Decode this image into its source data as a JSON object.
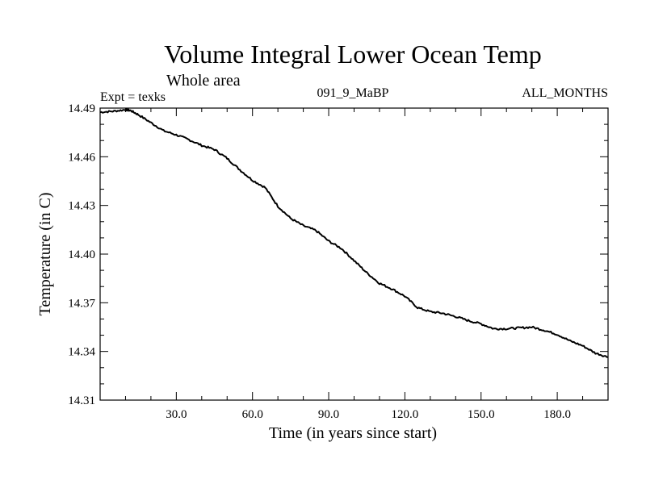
{
  "chart_data": {
    "type": "line",
    "title": "Volume Integral Lower Ocean Temp",
    "subtitle": "Whole area",
    "expt_label": "Expt = texks",
    "center_label": "091_9_MaBP",
    "right_label": "ALL_MONTHS",
    "xlabel": "Time (in years since start)",
    "ylabel": "Temperature (in C)",
    "xlim": [
      0,
      200
    ],
    "ylim": [
      14.31,
      14.49
    ],
    "x_ticks": [
      {
        "value": 30,
        "label": "30.0"
      },
      {
        "value": 60,
        "label": "60.0"
      },
      {
        "value": 90,
        "label": "90.0"
      },
      {
        "value": 120,
        "label": "120.0"
      },
      {
        "value": 150,
        "label": "150.0"
      },
      {
        "value": 180,
        "label": "180.0"
      }
    ],
    "y_ticks": [
      {
        "value": 14.31,
        "label": "14.31"
      },
      {
        "value": 14.34,
        "label": "14.34"
      },
      {
        "value": 14.37,
        "label": "14.37"
      },
      {
        "value": 14.4,
        "label": "14.40"
      },
      {
        "value": 14.43,
        "label": "14.43"
      },
      {
        "value": 14.46,
        "label": "14.46"
      },
      {
        "value": 14.49,
        "label": "14.49"
      }
    ],
    "x_minor_step": 10,
    "y_minor_step": 0.01,
    "series": [
      {
        "name": "Volume Integral Lower Ocean Temp",
        "color": "#000000",
        "x": [
          0,
          5,
          10,
          12,
          15,
          20,
          25,
          30,
          35,
          40,
          45,
          50,
          55,
          60,
          65,
          70,
          75,
          80,
          85,
          90,
          95,
          100,
          105,
          110,
          115,
          120,
          125,
          130,
          135,
          140,
          145,
          150,
          155,
          160,
          165,
          170,
          175,
          180,
          185,
          190,
          195,
          200
        ],
        "y": [
          14.4875,
          14.488,
          14.489,
          14.4885,
          14.486,
          14.481,
          14.476,
          14.4735,
          14.4705,
          14.467,
          14.4645,
          14.459,
          14.452,
          14.4455,
          14.441,
          14.4295,
          14.422,
          14.4175,
          14.4145,
          14.408,
          14.4035,
          14.396,
          14.3885,
          14.382,
          14.3785,
          14.374,
          14.367,
          14.3645,
          14.3635,
          14.3615,
          14.359,
          14.357,
          14.354,
          14.354,
          14.3545,
          14.355,
          14.353,
          14.3505,
          14.3465,
          14.3435,
          14.339,
          14.3365
        ]
      }
    ]
  }
}
